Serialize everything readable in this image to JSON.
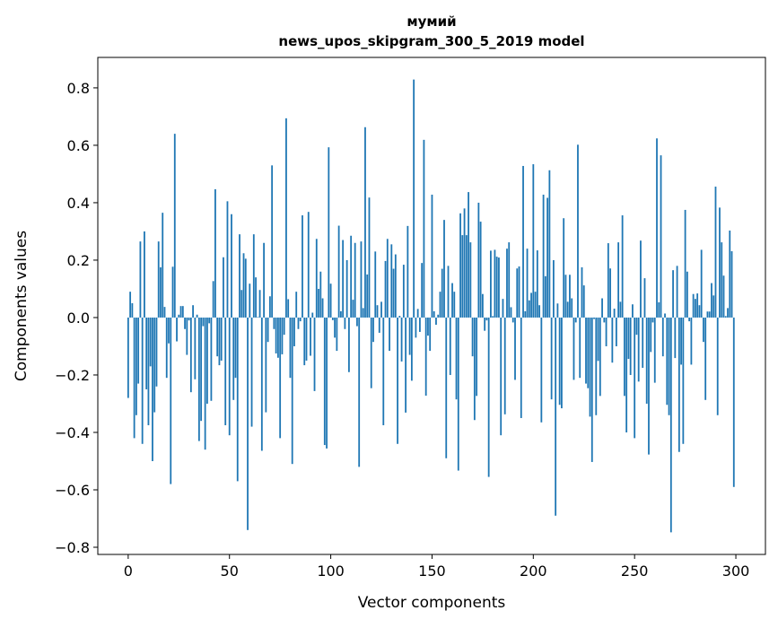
{
  "chart_data": {
    "type": "bar",
    "title": "мумий",
    "subtitle": "news_upos_skipgram_300_5_2019 model",
    "xlabel": "Vector components",
    "ylabel": "Components values",
    "xlim": [
      -15,
      314.6
    ],
    "ylim": [
      -0.825,
      0.906
    ],
    "xticks": [
      0,
      50,
      100,
      150,
      200,
      250,
      300
    ],
    "xtick_labels": [
      "0",
      "50",
      "100",
      "150",
      "200",
      "250",
      "300"
    ],
    "yticks": [
      -0.8,
      -0.6,
      -0.4,
      -0.2,
      0.0,
      0.2,
      0.4,
      0.6,
      0.8
    ],
    "ytick_labels": [
      "−0.8",
      "−0.6",
      "−0.4",
      "−0.2",
      "0.0",
      "0.2",
      "0.4",
      "0.6",
      "0.8"
    ],
    "grid": false,
    "bar_color": "#1f77b4",
    "values": [
      -0.28,
      0.09,
      0.05,
      -0.42,
      -0.34,
      -0.23,
      0.265,
      -0.44,
      0.3,
      -0.25,
      -0.375,
      -0.17,
      -0.5,
      -0.33,
      -0.24,
      0.265,
      0.175,
      0.365,
      0.037,
      -0.21,
      -0.09,
      -0.58,
      0.177,
      0.64,
      -0.083,
      0.01,
      0.04,
      0.04,
      -0.04,
      -0.13,
      -0.01,
      -0.26,
      0.043,
      -0.215,
      0.01,
      -0.43,
      -0.36,
      -0.03,
      -0.46,
      -0.3,
      -0.02,
      -0.29,
      0.127,
      0.447,
      -0.135,
      -0.166,
      -0.15,
      0.21,
      -0.375,
      0.405,
      -0.41,
      0.36,
      -0.287,
      -0.21,
      -0.57,
      0.29,
      0.096,
      0.224,
      0.205,
      -0.74,
      0.118,
      -0.38,
      0.29,
      0.14,
      0.002,
      0.096,
      -0.464,
      0.26,
      -0.33,
      -0.085,
      0.074,
      0.53,
      -0.04,
      -0.125,
      -0.14,
      -0.42,
      -0.128,
      -0.06,
      0.694,
      0.064,
      -0.21,
      -0.51,
      -0.1,
      0.09,
      -0.04,
      -0.013,
      0.356,
      -0.166,
      -0.15,
      0.368,
      -0.133,
      0.017,
      -0.256,
      0.274,
      0.1,
      0.16,
      0.067,
      -0.444,
      -0.456,
      0.593,
      0.118,
      -0.009,
      -0.07,
      -0.116,
      0.32,
      0.022,
      0.27,
      -0.04,
      0.2,
      -0.19,
      0.285,
      0.062,
      0.26,
      -0.03,
      -0.52,
      0.265,
      0.033,
      0.663,
      0.15,
      0.418,
      -0.246,
      -0.085,
      0.23,
      0.043,
      -0.053,
      0.055,
      -0.375,
      0.197,
      0.274,
      -0.116,
      0.255,
      0.17,
      0.22,
      -0.44,
      0.006,
      -0.153,
      0.184,
      -0.331,
      0.319,
      -0.13,
      -0.22,
      0.829,
      -0.07,
      0.03,
      -0.05,
      0.19,
      0.619,
      -0.272,
      -0.063,
      -0.116,
      0.428,
      0.022,
      -0.025,
      0.01,
      0.09,
      0.17,
      0.34,
      -0.49,
      0.18,
      -0.2,
      0.12,
      0.09,
      -0.285,
      -0.533,
      0.363,
      0.287,
      0.38,
      0.287,
      0.437,
      0.262,
      -0.135,
      -0.357,
      -0.273,
      0.4,
      0.334,
      0.082,
      -0.046,
      -0.01,
      -0.555,
      0.233,
      0.005,
      0.236,
      0.212,
      0.209,
      -0.41,
      0.065,
      -0.337,
      0.24,
      0.262,
      0.036,
      -0.017,
      -0.217,
      0.171,
      0.178,
      -0.35,
      0.528,
      0.022,
      0.24,
      0.06,
      0.086,
      0.534,
      0.09,
      0.234,
      0.043,
      -0.365,
      0.428,
      0.144,
      0.417,
      0.513,
      -0.285,
      0.2,
      -0.69,
      0.049,
      -0.304,
      -0.316,
      0.346,
      0.149,
      0.055,
      0.149,
      0.067,
      -0.217,
      -0.017,
      0.602,
      -0.21,
      0.175,
      0.112,
      -0.23,
      -0.246,
      -0.345,
      -0.503,
      -0.005,
      -0.34,
      -0.151,
      -0.273,
      0.067,
      -0.017,
      -0.1,
      0.259,
      0.171,
      -0.157,
      0.031,
      -0.1,
      0.262,
      0.055,
      0.356,
      -0.273,
      -0.4,
      -0.144,
      -0.2,
      0.046,
      -0.42,
      -0.06,
      -0.223,
      0.268,
      -0.175,
      0.137,
      -0.3,
      -0.477,
      -0.12,
      -0.017,
      -0.227,
      0.624,
      0.053,
      0.565,
      -0.135,
      0.014,
      -0.304,
      -0.34,
      -0.748,
      0.165,
      -0.141,
      0.18,
      -0.468,
      -0.164,
      -0.44,
      0.375,
      0.16,
      -0.013,
      -0.164,
      0.082,
      0.065,
      0.084,
      0.043,
      0.236,
      -0.085,
      -0.287,
      0.021,
      0.021,
      0.12,
      0.077,
      0.456,
      -0.34,
      0.383,
      0.262,
      0.146,
      0.005,
      0.033,
      0.303,
      0.231,
      -0.59
    ]
  }
}
